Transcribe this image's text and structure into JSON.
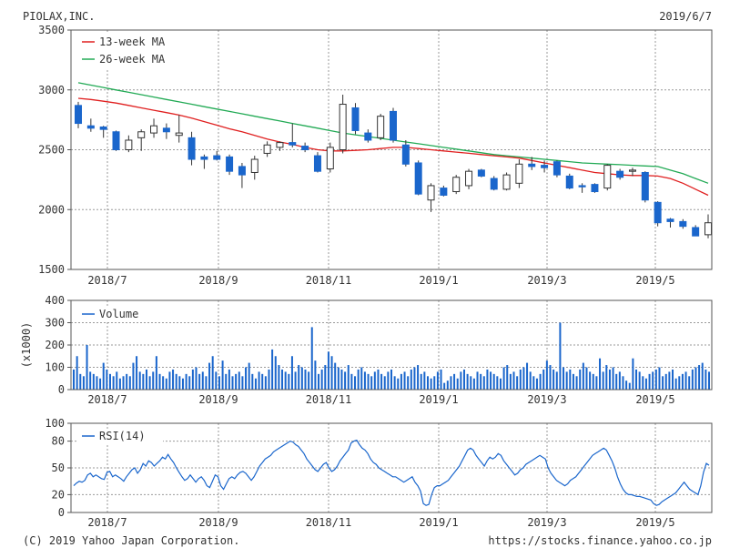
{
  "header": {
    "company": "PIOLAX,INC.",
    "date": "2019/6/7"
  },
  "footer": {
    "copyright": "(C) 2019 Yahoo Japan Corporation.",
    "url": "https://stocks.finance.yahoo.co.jp"
  },
  "colors": {
    "up": "#ffffff",
    "down": "#1a66cc",
    "ma13": "#e02020",
    "ma26": "#22aa55",
    "volume": "#1a66cc",
    "rsi": "#1a66cc"
  },
  "chart_data": [
    {
      "type": "candlestick",
      "ylim": [
        1500,
        3500
      ],
      "yticks": [
        "3500",
        "3000",
        "2500",
        "2000",
        "1500"
      ],
      "xticks": [
        "2018/7",
        "2018/9",
        "2018/11",
        "2019/1",
        "2019/3",
        "2019/5"
      ],
      "legend": [
        "13-week MA",
        "26-week MA"
      ],
      "legend_position": "top-left",
      "grid": true,
      "candles": [
        {
          "o": 2870,
          "h": 2900,
          "l": 2680,
          "c": 2720
        },
        {
          "o": 2700,
          "h": 2760,
          "l": 2650,
          "c": 2680
        },
        {
          "o": 2690,
          "h": 2700,
          "l": 2600,
          "c": 2670
        },
        {
          "o": 2650,
          "h": 2660,
          "l": 2490,
          "c": 2500
        },
        {
          "o": 2500,
          "h": 2620,
          "l": 2480,
          "c": 2580
        },
        {
          "o": 2600,
          "h": 2670,
          "l": 2490,
          "c": 2650
        },
        {
          "o": 2640,
          "h": 2760,
          "l": 2600,
          "c": 2700
        },
        {
          "o": 2680,
          "h": 2720,
          "l": 2590,
          "c": 2650
        },
        {
          "o": 2620,
          "h": 2790,
          "l": 2560,
          "c": 2640
        },
        {
          "o": 2600,
          "h": 2650,
          "l": 2370,
          "c": 2420
        },
        {
          "o": 2440,
          "h": 2460,
          "l": 2340,
          "c": 2420
        },
        {
          "o": 2450,
          "h": 2490,
          "l": 2410,
          "c": 2420
        },
        {
          "o": 2440,
          "h": 2460,
          "l": 2290,
          "c": 2320
        },
        {
          "o": 2360,
          "h": 2390,
          "l": 2180,
          "c": 2290
        },
        {
          "o": 2310,
          "h": 2450,
          "l": 2250,
          "c": 2420
        },
        {
          "o": 2470,
          "h": 2570,
          "l": 2440,
          "c": 2540
        },
        {
          "o": 2520,
          "h": 2570,
          "l": 2490,
          "c": 2560
        },
        {
          "o": 2560,
          "h": 2720,
          "l": 2520,
          "c": 2540
        },
        {
          "o": 2530,
          "h": 2560,
          "l": 2480,
          "c": 2500
        },
        {
          "o": 2450,
          "h": 2480,
          "l": 2310,
          "c": 2320
        },
        {
          "o": 2340,
          "h": 2560,
          "l": 2310,
          "c": 2520
        },
        {
          "o": 2500,
          "h": 2960,
          "l": 2470,
          "c": 2880
        },
        {
          "o": 2850,
          "h": 2890,
          "l": 2630,
          "c": 2660
        },
        {
          "o": 2640,
          "h": 2670,
          "l": 2560,
          "c": 2580
        },
        {
          "o": 2600,
          "h": 2800,
          "l": 2580,
          "c": 2780
        },
        {
          "o": 2820,
          "h": 2850,
          "l": 2560,
          "c": 2580
        },
        {
          "o": 2540,
          "h": 2580,
          "l": 2360,
          "c": 2380
        },
        {
          "o": 2390,
          "h": 2410,
          "l": 2120,
          "c": 2130
        },
        {
          "o": 2080,
          "h": 2220,
          "l": 1980,
          "c": 2200
        },
        {
          "o": 2180,
          "h": 2200,
          "l": 2110,
          "c": 2120
        },
        {
          "o": 2150,
          "h": 2290,
          "l": 2130,
          "c": 2270
        },
        {
          "o": 2200,
          "h": 2340,
          "l": 2170,
          "c": 2320
        },
        {
          "o": 2330,
          "h": 2340,
          "l": 2270,
          "c": 2280
        },
        {
          "o": 2260,
          "h": 2280,
          "l": 2160,
          "c": 2170
        },
        {
          "o": 2170,
          "h": 2310,
          "l": 2160,
          "c": 2290
        },
        {
          "o": 2220,
          "h": 2420,
          "l": 2180,
          "c": 2380
        },
        {
          "o": 2380,
          "h": 2440,
          "l": 2330,
          "c": 2360
        },
        {
          "o": 2370,
          "h": 2410,
          "l": 2310,
          "c": 2350
        },
        {
          "o": 2400,
          "h": 2410,
          "l": 2270,
          "c": 2290
        },
        {
          "o": 2280,
          "h": 2300,
          "l": 2170,
          "c": 2180
        },
        {
          "o": 2200,
          "h": 2220,
          "l": 2140,
          "c": 2190
        },
        {
          "o": 2210,
          "h": 2220,
          "l": 2140,
          "c": 2150
        },
        {
          "o": 2180,
          "h": 2380,
          "l": 2160,
          "c": 2370
        },
        {
          "o": 2320,
          "h": 2340,
          "l": 2250,
          "c": 2270
        },
        {
          "o": 2320,
          "h": 2350,
          "l": 2280,
          "c": 2330
        },
        {
          "o": 2310,
          "h": 2320,
          "l": 2060,
          "c": 2080
        },
        {
          "o": 2060,
          "h": 2070,
          "l": 1860,
          "c": 1890
        },
        {
          "o": 1920,
          "h": 1930,
          "l": 1850,
          "c": 1900
        },
        {
          "o": 1900,
          "h": 1920,
          "l": 1840,
          "c": 1860
        },
        {
          "o": 1850,
          "h": 1870,
          "l": 1780,
          "c": 1780
        },
        {
          "o": 1790,
          "h": 1960,
          "l": 1760,
          "c": 1890
        }
      ],
      "ma13": [
        2930,
        2920,
        2905,
        2890,
        2870,
        2850,
        2830,
        2810,
        2790,
        2765,
        2735,
        2705,
        2675,
        2650,
        2620,
        2590,
        2565,
        2545,
        2520,
        2500,
        2490,
        2490,
        2495,
        2500,
        2510,
        2520,
        2520,
        2510,
        2500,
        2490,
        2480,
        2470,
        2460,
        2450,
        2440,
        2430,
        2410,
        2390,
        2370,
        2350,
        2330,
        2310,
        2300,
        2290,
        2285,
        2285,
        2280,
        2260,
        2220,
        2170,
        2120
      ],
      "ma26": [
        3060,
        3040,
        3020,
        3000,
        2980,
        2960,
        2940,
        2920,
        2900,
        2880,
        2860,
        2840,
        2820,
        2800,
        2780,
        2760,
        2740,
        2720,
        2700,
        2680,
        2660,
        2640,
        2625,
        2610,
        2595,
        2580,
        2565,
        2550,
        2535,
        2520,
        2505,
        2490,
        2475,
        2460,
        2450,
        2440,
        2430,
        2420,
        2410,
        2400,
        2390,
        2385,
        2380,
        2375,
        2370,
        2365,
        2360,
        2330,
        2300,
        2260,
        2220
      ]
    },
    {
      "type": "bar",
      "ylim": [
        0,
        400
      ],
      "yticks": [
        "400",
        "300",
        "200",
        "100",
        "0"
      ],
      "ylabel": "(x1000)",
      "xticks": [
        "2018/7",
        "2018/9",
        "2018/11",
        "2019/1",
        "2019/3",
        "2019/5"
      ],
      "legend": [
        "Volume"
      ],
      "legend_position": "top-left",
      "grid": true,
      "values": [
        90,
        150,
        70,
        60,
        200,
        80,
        70,
        60,
        50,
        120,
        90,
        70,
        60,
        80,
        50,
        60,
        70,
        60,
        120,
        150,
        80,
        70,
        90,
        60,
        80,
        150,
        70,
        60,
        50,
        80,
        90,
        70,
        60,
        50,
        70,
        60,
        90,
        100,
        70,
        80,
        60,
        120,
        150,
        80,
        60,
        130,
        70,
        90,
        60,
        70,
        80,
        60,
        100,
        120,
        70,
        50,
        80,
        70,
        60,
        90,
        180,
        150,
        110,
        90,
        80,
        70,
        150,
        80,
        110,
        100,
        90,
        80,
        280,
        130,
        70,
        90,
        110,
        170,
        150,
        120,
        100,
        90,
        80,
        110,
        70,
        60,
        90,
        100,
        80,
        70,
        60,
        80,
        90,
        70,
        60,
        80,
        90,
        60,
        50,
        70,
        80,
        60,
        90,
        100,
        110,
        70,
        80,
        60,
        50,
        60,
        80,
        90,
        30,
        40,
        60,
        70,
        50,
        80,
        90,
        70,
        60,
        50,
        80,
        70,
        60,
        90,
        80,
        70,
        60,
        50,
        100,
        110,
        70,
        80,
        60,
        90,
        100,
        120,
        80,
        60,
        50,
        70,
        90,
        130,
        110,
        90,
        80,
        300,
        100,
        80,
        90,
        70,
        60,
        90,
        120,
        100,
        80,
        70,
        60,
        140,
        80,
        110,
        90,
        100,
        70,
        80,
        60,
        40,
        30,
        140,
        90,
        80,
        60,
        50,
        70,
        80,
        90,
        100,
        60,
        70,
        80,
        90,
        50,
        60,
        70,
        80,
        60,
        90,
        100,
        110,
        120,
        90,
        80
      ]
    },
    {
      "type": "line",
      "ylim": [
        0,
        100
      ],
      "yticks": [
        "100",
        "80",
        "50",
        "20",
        "0"
      ],
      "xticks": [
        "2018/7",
        "2018/9",
        "2018/11",
        "2019/1",
        "2019/3",
        "2019/5"
      ],
      "legend": [
        "RSI(14)"
      ],
      "legend_position": "top-left",
      "grid": true,
      "values": [
        30,
        33,
        35,
        34,
        36,
        42,
        44,
        40,
        42,
        40,
        38,
        37,
        45,
        46,
        40,
        42,
        40,
        38,
        35,
        40,
        44,
        48,
        50,
        44,
        48,
        55,
        52,
        58,
        56,
        52,
        55,
        58,
        62,
        60,
        65,
        60,
        56,
        50,
        45,
        40,
        36,
        38,
        42,
        38,
        34,
        38,
        40,
        36,
        30,
        28,
        35,
        42,
        40,
        30,
        26,
        32,
        38,
        40,
        38,
        42,
        45,
        46,
        44,
        40,
        36,
        40,
        46,
        52,
        56,
        60,
        62,
        64,
        68,
        70,
        72,
        74,
        76,
        78,
        80,
        79,
        76,
        74,
        70,
        66,
        60,
        56,
        52,
        48,
        46,
        50,
        54,
        56,
        50,
        46,
        48,
        52,
        58,
        62,
        66,
        70,
        78,
        80,
        81,
        76,
        72,
        70,
        66,
        60,
        56,
        54,
        50,
        48,
        46,
        44,
        42,
        40,
        40,
        38,
        36,
        34,
        36,
        38,
        40,
        34,
        30,
        24,
        10,
        8,
        9,
        20,
        28,
        30,
        30,
        32,
        34,
        36,
        40,
        44,
        48,
        52,
        58,
        64,
        70,
        72,
        70,
        64,
        60,
        56,
        52,
        58,
        62,
        60,
        62,
        66,
        64,
        58,
        54,
        50,
        46,
        42,
        44,
        48,
        50,
        54,
        56,
        58,
        60,
        62,
        64,
        62,
        60,
        50,
        44,
        40,
        36,
        34,
        32,
        30,
        32,
        36,
        38,
        40,
        44,
        48,
        52,
        56,
        60,
        64,
        66,
        68,
        70,
        72,
        70,
        64,
        58,
        50,
        40,
        32,
        26,
        22,
        20,
        20,
        19,
        18,
        18,
        17,
        16,
        15,
        14,
        10,
        8,
        9,
        12,
        14,
        16,
        18,
        20,
        22,
        26,
        30,
        34,
        30,
        26,
        24,
        22,
        20,
        30,
        45,
        55,
        53
      ]
    }
  ]
}
